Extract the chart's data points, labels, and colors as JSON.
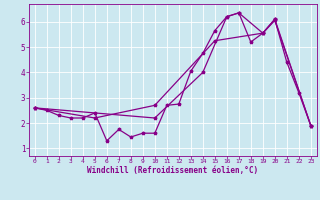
{
  "title": "",
  "xlabel": "Windchill (Refroidissement éolien,°C)",
  "ylabel": "",
  "background_color": "#cce8f0",
  "grid_color": "#ffffff",
  "line_color": "#880088",
  "xlim": [
    -0.5,
    23.5
  ],
  "ylim": [
    0.7,
    6.7
  ],
  "xticks": [
    0,
    1,
    2,
    3,
    4,
    5,
    6,
    7,
    8,
    9,
    10,
    11,
    12,
    13,
    14,
    15,
    16,
    17,
    18,
    19,
    20,
    21,
    22,
    23
  ],
  "yticks": [
    1,
    2,
    3,
    4,
    5,
    6
  ],
  "line1_x": [
    0,
    1,
    2,
    3,
    4,
    5,
    6,
    7,
    8,
    9,
    10,
    11,
    12,
    13,
    14,
    15,
    16,
    17,
    18,
    19,
    20,
    21,
    22,
    23
  ],
  "line1_y": [
    2.6,
    2.5,
    2.3,
    2.2,
    2.2,
    2.4,
    1.3,
    1.75,
    1.45,
    1.6,
    1.6,
    2.7,
    2.75,
    4.05,
    4.75,
    5.65,
    6.2,
    6.35,
    5.2,
    5.55,
    6.1,
    4.4,
    3.2,
    1.9
  ],
  "line2_x": [
    0,
    10,
    14,
    16,
    17,
    19,
    20,
    23
  ],
  "line2_y": [
    2.6,
    2.2,
    4.0,
    6.2,
    6.35,
    5.55,
    6.1,
    1.9
  ],
  "line3_x": [
    0,
    5,
    10,
    15,
    19,
    20,
    23
  ],
  "line3_y": [
    2.6,
    2.2,
    2.7,
    5.25,
    5.55,
    6.05,
    1.9
  ]
}
